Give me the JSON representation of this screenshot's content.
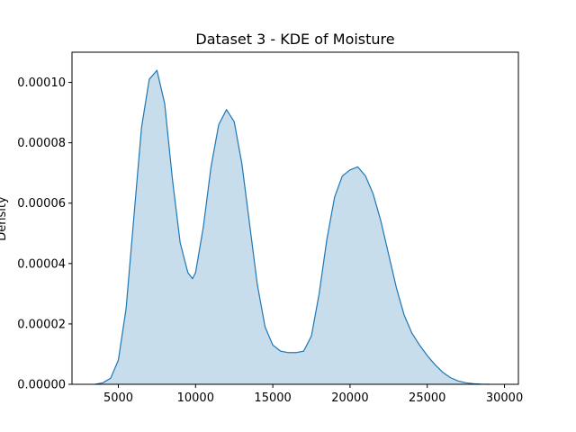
{
  "chart_data": {
    "type": "area",
    "title": "Dataset 3 - KDE of Moisture",
    "xlabel": "",
    "ylabel": "Density",
    "xlim": [
      2000,
      30900
    ],
    "ylim": [
      0,
      0.00011
    ],
    "x_ticks": [
      5000,
      10000,
      15000,
      20000,
      25000,
      30000
    ],
    "x_tick_labels": [
      "5000",
      "10000",
      "15000",
      "20000",
      "25000",
      "30000"
    ],
    "y_ticks": [
      0,
      2e-05,
      4e-05,
      6e-05,
      8e-05,
      0.0001
    ],
    "y_tick_labels": [
      "0.00000",
      "0.00002",
      "0.00004",
      "0.00006",
      "0.00008",
      "0.00010"
    ],
    "grid": false,
    "colors": {
      "line": "#1f77b4",
      "fill": "#1f77b4",
      "fill_opacity": 0.25
    },
    "series": [
      {
        "x": [
          3500,
          4000,
          4500,
          5000,
          5500,
          6000,
          6500,
          7000,
          7500,
          8000,
          8500,
          9000,
          9500,
          9800,
          10000,
          10500,
          11000,
          11500,
          12000,
          12500,
          13000,
          13500,
          14000,
          14500,
          15000,
          15500,
          16000,
          16500,
          17000,
          17500,
          18000,
          18500,
          19000,
          19500,
          20000,
          20500,
          21000,
          21500,
          22000,
          22500,
          23000,
          23500,
          24000,
          24500,
          25000,
          25500,
          26000,
          26500,
          27000,
          27500,
          28000,
          28500,
          29000
        ],
        "y": [
          0.0,
          5e-07,
          2e-06,
          8e-06,
          2.5e-05,
          5.5e-05,
          8.5e-05,
          0.000101,
          0.000104,
          9.3e-05,
          6.8e-05,
          4.7e-05,
          3.7e-05,
          3.5e-05,
          3.7e-05,
          5.2e-05,
          7.2e-05,
          8.6e-05,
          9.1e-05,
          8.7e-05,
          7.3e-05,
          5.3e-05,
          3.3e-05,
          1.9e-05,
          1.3e-05,
          1.1e-05,
          1.05e-05,
          1.05e-05,
          1.1e-05,
          1.6e-05,
          3e-05,
          4.8e-05,
          6.2e-05,
          6.9e-05,
          7.1e-05,
          7.2e-05,
          6.9e-05,
          6.3e-05,
          5.4e-05,
          4.3e-05,
          3.2e-05,
          2.3e-05,
          1.7e-05,
          1.3e-05,
          9.5e-06,
          6.5e-06,
          4e-06,
          2.2e-06,
          1.1e-06,
          5e-07,
          2e-07,
          5e-08,
          0.0
        ]
      }
    ]
  }
}
